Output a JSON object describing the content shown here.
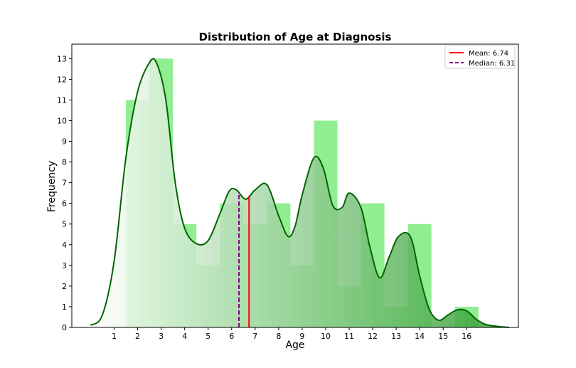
{
  "chart_data": {
    "type": "bar",
    "title": "Distribution of Age at Diagnosis",
    "xlabel": "Age",
    "ylabel": "Frequency",
    "xlim": [
      -0.8,
      18.2
    ],
    "ylim": [
      0,
      13.7
    ],
    "x_ticks": [
      1,
      2,
      3,
      4,
      5,
      6,
      7,
      8,
      9,
      10,
      11,
      12,
      13,
      14,
      15,
      16
    ],
    "y_ticks": [
      0,
      1,
      2,
      3,
      4,
      5,
      6,
      7,
      8,
      9,
      10,
      11,
      12,
      13
    ],
    "bars": {
      "name": "histogram",
      "categories": [
        1,
        2,
        3,
        4,
        5,
        6,
        7,
        8,
        9,
        10,
        11,
        12,
        13,
        14,
        15,
        16
      ],
      "values": [
        0,
        11,
        13,
        5,
        3,
        6,
        5,
        6,
        3,
        10,
        2,
        6,
        1,
        5,
        0,
        1
      ],
      "color": "#90ee90"
    },
    "kde": {
      "color": "#006400",
      "x": [
        0,
        0.5,
        1,
        1.5,
        2,
        2.5,
        2.8,
        3.2,
        3.6,
        4,
        4.5,
        5,
        5.5,
        5.9,
        6.2,
        6.6,
        7,
        7.5,
        8,
        8.4,
        8.7,
        9,
        9.5,
        9.9,
        10.3,
        10.7,
        11,
        11.5,
        11.9,
        12.3,
        12.7,
        13.1,
        13.6,
        14,
        14.4,
        14.8,
        15.2,
        15.6,
        16,
        16.4,
        16.8,
        17.3,
        17.8
      ],
      "y": [
        0.1,
        0.6,
        3.2,
        8.2,
        11.4,
        12.8,
        12.8,
        11,
        7,
        4.8,
        4.05,
        4.2,
        5.5,
        6.6,
        6.65,
        6.2,
        6.65,
        6.9,
        5.4,
        4.4,
        4.9,
        6.4,
        8.2,
        7.7,
        5.9,
        5.8,
        6.5,
        5.8,
        3.8,
        2.4,
        3.4,
        4.4,
        4.4,
        2.5,
        0.9,
        0.35,
        0.6,
        0.85,
        0.8,
        0.4,
        0.15,
        0.05,
        0.0
      ]
    },
    "mean": {
      "label": "Mean: 6.74",
      "value": 6.74,
      "color": "#ff0000"
    },
    "median": {
      "label": "Median: 6.31",
      "value": 6.31,
      "color": "#800080"
    },
    "legend_position": "top-right",
    "grid": false
  }
}
